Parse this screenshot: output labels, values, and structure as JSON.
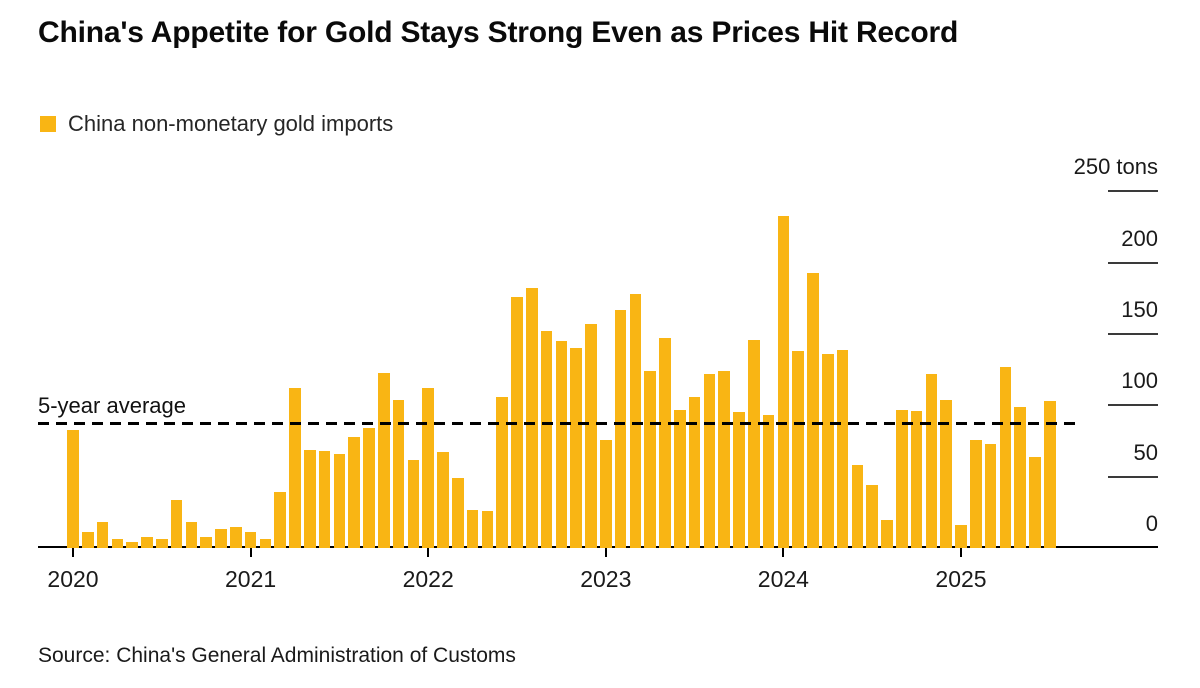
{
  "header": {
    "title": "China's Appetite for Gold Stays Strong Even as Prices Hit Record"
  },
  "legend": {
    "label": "China non-monetary gold imports"
  },
  "chart_data": {
    "type": "bar",
    "title": "China's Appetite for Gold Stays Strong Even as Prices Hit Record",
    "bar_color": "#F9B514",
    "unit": "tons",
    "frequency": "monthly",
    "x_start": "2020-01",
    "x_end": "2025-07",
    "months": [
      "2020-01",
      "2020-02",
      "2020-03",
      "2020-04",
      "2020-05",
      "2020-06",
      "2020-07",
      "2020-08",
      "2020-09",
      "2020-10",
      "2020-11",
      "2020-12",
      "2021-01",
      "2021-02",
      "2021-03",
      "2021-04",
      "2021-05",
      "2021-06",
      "2021-07",
      "2021-08",
      "2021-09",
      "2021-10",
      "2021-11",
      "2021-12",
      "2022-01",
      "2022-02",
      "2022-03",
      "2022-04",
      "2022-05",
      "2022-06",
      "2022-07",
      "2022-08",
      "2022-09",
      "2022-10",
      "2022-11",
      "2022-12",
      "2023-01",
      "2023-02",
      "2023-03",
      "2023-04",
      "2023-05",
      "2023-06",
      "2023-07",
      "2023-08",
      "2023-09",
      "2023-10",
      "2023-11",
      "2023-12",
      "2024-01",
      "2024-02",
      "2024-03",
      "2024-04",
      "2024-05",
      "2024-06",
      "2024-07",
      "2024-08",
      "2024-09",
      "2024-10",
      "2024-11",
      "2024-12",
      "2025-01",
      "2025-02",
      "2025-03",
      "2025-04",
      "2025-05",
      "2025-06",
      "2025-07"
    ],
    "series": [
      {
        "name": "China non-monetary gold imports",
        "values": [
          83,
          11,
          18,
          6,
          4,
          8,
          6,
          34,
          18,
          8,
          13,
          15,
          11,
          6,
          39,
          112,
          69,
          68,
          66,
          78,
          84,
          123,
          104,
          62,
          112,
          67,
          49,
          27,
          26,
          106,
          176,
          182,
          152,
          145,
          140,
          157,
          76,
          167,
          178,
          124,
          147,
          97,
          106,
          122,
          124,
          95,
          146,
          93,
          233,
          138,
          193,
          136,
          139,
          58,
          44,
          20,
          97,
          96,
          122,
          104,
          16,
          76,
          73,
          127,
          99,
          64,
          103
        ]
      }
    ],
    "average_line": {
      "label": "5-year average",
      "value": 87,
      "style": "dashed-black"
    },
    "ylim": [
      0,
      250
    ],
    "yticks": [
      {
        "value": 0,
        "label": "0"
      },
      {
        "value": 50,
        "label": "50"
      },
      {
        "value": 100,
        "label": "100"
      },
      {
        "value": 150,
        "label": "150"
      },
      {
        "value": 200,
        "label": "200"
      },
      {
        "value": 250,
        "label": "250 tons"
      }
    ],
    "xticks": [
      {
        "label": "2020",
        "month_index": 0
      },
      {
        "label": "2021",
        "month_index": 12
      },
      {
        "label": "2022",
        "month_index": 24
      },
      {
        "label": "2023",
        "month_index": 36
      },
      {
        "label": "2024",
        "month_index": 48
      },
      {
        "label": "2025",
        "month_index": 60
      }
    ],
    "grid": "right-side tick marks only, no full gridlines",
    "legend_position": "top-left",
    "y_axis_side": "right"
  },
  "footer": {
    "source": "Source: China's General Administration of Customs"
  }
}
